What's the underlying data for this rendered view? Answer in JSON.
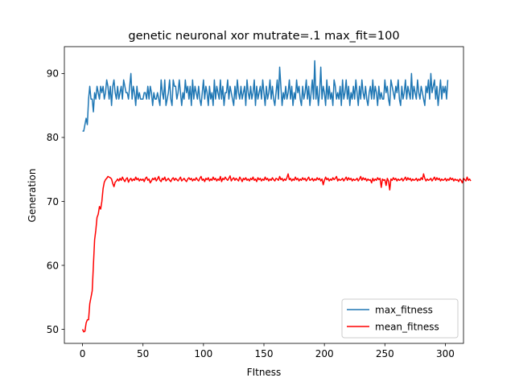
{
  "chart_data": {
    "type": "line",
    "title": "genetic neuronal xor mutrate=.1 max_fit=100",
    "xlabel": "FItness",
    "ylabel": "Generation",
    "xlim": [
      -15,
      315
    ],
    "ylim": [
      47.8,
      94.2
    ],
    "xticks": [
      0,
      50,
      100,
      150,
      200,
      250,
      300
    ],
    "yticks": [
      50,
      60,
      70,
      80,
      90
    ],
    "grid": false,
    "legend_position": "lower-right",
    "series": [
      {
        "name": "max_fitness",
        "color": "#1f77b4",
        "values": [
          81,
          81,
          82,
          83,
          82,
          86,
          88,
          86,
          86,
          84,
          87,
          86,
          88,
          87,
          86,
          88,
          87,
          88,
          86,
          87,
          89,
          88,
          86,
          88,
          85,
          88,
          89,
          87,
          86,
          88,
          86,
          87,
          88,
          86,
          89,
          88,
          87,
          87,
          86,
          88,
          90,
          86,
          88,
          87,
          85,
          88,
          86,
          87,
          86,
          86,
          86,
          87,
          87,
          86,
          88,
          86,
          88,
          87,
          85,
          87,
          86,
          86,
          87,
          86,
          85,
          89,
          87,
          86,
          89,
          85,
          86,
          87,
          89,
          86,
          85,
          89,
          88,
          88,
          86,
          87,
          89,
          87,
          85,
          87,
          86,
          89,
          87,
          88,
          86,
          88,
          85,
          89,
          86,
          88,
          87,
          86,
          88,
          86,
          85,
          87,
          89,
          86,
          88,
          87,
          85,
          88,
          86,
          87,
          85,
          89,
          86,
          88,
          87,
          86,
          89,
          86,
          88,
          85,
          87,
          87,
          89,
          86,
          88,
          87,
          86,
          85,
          88,
          86,
          89,
          87,
          86,
          88,
          86,
          87,
          88,
          85,
          89,
          87,
          86,
          88,
          86,
          87,
          89,
          85,
          88,
          86,
          87,
          88,
          86,
          89,
          87,
          85,
          88,
          86,
          87,
          89,
          86,
          88,
          86,
          85,
          87,
          89,
          86,
          91,
          88,
          85,
          87,
          86,
          88,
          86,
          87,
          89,
          86,
          88,
          85,
          87,
          86,
          89,
          87,
          88,
          86,
          85,
          88,
          86,
          87,
          89,
          86,
          88,
          85,
          87,
          89,
          86,
          92,
          86,
          88,
          85,
          87,
          91,
          86,
          88,
          87,
          85,
          89,
          86,
          88,
          86,
          87,
          85,
          89,
          88,
          86,
          87,
          86,
          88,
          85,
          89,
          86,
          87,
          89,
          86,
          88,
          85,
          87,
          86,
          88,
          86,
          89,
          87,
          85,
          88,
          86,
          89,
          87,
          86,
          88,
          86,
          85,
          87,
          88,
          86,
          89,
          86,
          88,
          87,
          85,
          88,
          86,
          87,
          86,
          86,
          89,
          87,
          88,
          86,
          85,
          89,
          88,
          87,
          86,
          88,
          87,
          89,
          86,
          85,
          88,
          86,
          87,
          89,
          86,
          88,
          87,
          86,
          90,
          86,
          88,
          87,
          86,
          89,
          87,
          86,
          88,
          87,
          86,
          85,
          88,
          87,
          89,
          86,
          90,
          87,
          88,
          89,
          86,
          88,
          85,
          87,
          89,
          86,
          88,
          87,
          88,
          86,
          89
        ]
      },
      {
        "name": "mean_fitness",
        "color": "#ff0000",
        "values": [
          50,
          49.6,
          49.7,
          51,
          51.5,
          51.5,
          54,
          55,
          56,
          60,
          64,
          65.5,
          67.5,
          68,
          69.2,
          68.8,
          70,
          72,
          73,
          73.4,
          73.6,
          73.9,
          73.8,
          73.7,
          73.5,
          72.8,
          72.3,
          73,
          73.2,
          73.5,
          73.2,
          73.6,
          73.3,
          73.8,
          73.4,
          73.1,
          73.5,
          73.7,
          73,
          73.4,
          73.6,
          73.2,
          73.5,
          73.3,
          73.8,
          73.4,
          73.6,
          73.2,
          73.5,
          73.3,
          73.5,
          73.1,
          73.6,
          73.8,
          73.3,
          73.5,
          72.9,
          73.2,
          73.6,
          73.4,
          73.7,
          73.2,
          73.5,
          73.9,
          73.3,
          73.1,
          73.6,
          73.4,
          73.8,
          73.2,
          73.4,
          73.6,
          73.3,
          73.1,
          73.5,
          73.7,
          73.3,
          73.6,
          73.4,
          73.2,
          73.5,
          73.8,
          73.2,
          73.4,
          73.6,
          73.3,
          73.1,
          73.5,
          73.7,
          73.4,
          73.6,
          73.2,
          73.5,
          73.3,
          73.7,
          73.4,
          73.2,
          73.6,
          73.9,
          73.3,
          73.5,
          73.1,
          73.6,
          73.4,
          73.7,
          73.2,
          73.5,
          73.3,
          73.8,
          73.4,
          73.6,
          73.2,
          73.5,
          73.3,
          73.9,
          73.1,
          73.6,
          73.4,
          73.8,
          73.5,
          73.3,
          73.6,
          74,
          73.2,
          73.5,
          73.7,
          73.3,
          73.6,
          73.4,
          73.2,
          73.8,
          73.5,
          73.1,
          73.6,
          73.4,
          73.7,
          73.3,
          73.5,
          73.2,
          73.6,
          73.4,
          73.8,
          73.3,
          73.5,
          73.1,
          73.7,
          73.4,
          73.6,
          73.2,
          73.5,
          73.3,
          73.8,
          73.4,
          73.6,
          73.2,
          73.5,
          73.3,
          73.7,
          73.4,
          73.2,
          73.6,
          73.5,
          73.3,
          73.9,
          73.4,
          73.6,
          73.2,
          73.5,
          73.3,
          73.7,
          74.3,
          73.4,
          73.6,
          73.2,
          73.5,
          73.3,
          73.8,
          73.4,
          73.6,
          73.2,
          73.5,
          73.3,
          73.7,
          73.4,
          73.6,
          73.2,
          73.5,
          73.8,
          73.3,
          73.4,
          73.6,
          73.2,
          73.5,
          73.3,
          73.7,
          73.4,
          73.6,
          73.2,
          73.5,
          72.6,
          73.3,
          73.8,
          73.4,
          73.6,
          73.2,
          73.5,
          73.3,
          73.7,
          73.4,
          73.6,
          73.9,
          73.2,
          73.5,
          73.3,
          73.4,
          73.6,
          73.2,
          73.5,
          73.8,
          73.3,
          73.7,
          73.4,
          73.6,
          73.2,
          73.5,
          73.3,
          73.4,
          73.6,
          73.2,
          73.5,
          73.9,
          73.3,
          73.7,
          73.4,
          73.6,
          73.2,
          73.5,
          73.3,
          73.4,
          72.9,
          73.6,
          73.2,
          73.5,
          73.3,
          73.7,
          73.4,
          73.6,
          72.2,
          73.5,
          73.3,
          73.4,
          72.5,
          73.6,
          73.2,
          71.8,
          73.5,
          73.3,
          73.7,
          73.4,
          73.6,
          73.2,
          73.5,
          73.3,
          73.4,
          73.6,
          73.2,
          73.5,
          73.8,
          73.3,
          73.7,
          73.4,
          73.6,
          73.2,
          73.5,
          73.3,
          73.4,
          73.6,
          73.2,
          73.5,
          73.3,
          73.7,
          73.4,
          74.3,
          73.6,
          73.2,
          73.5,
          73.3,
          73.4,
          73.6,
          73.2,
          73.5,
          73.8,
          73.3,
          73.7,
          73.4,
          73.6,
          73.2,
          73.5,
          73.3,
          73.4,
          73.6,
          73.2,
          73.5,
          73.3,
          73.7,
          73.4,
          73.6,
          73.2,
          73.5,
          73.3,
          73.4,
          73.1,
          73.5,
          73.3,
          72.9,
          73.6,
          73.4,
          73.2,
          73.8,
          73.3,
          73.5,
          73.2
        ]
      }
    ]
  }
}
